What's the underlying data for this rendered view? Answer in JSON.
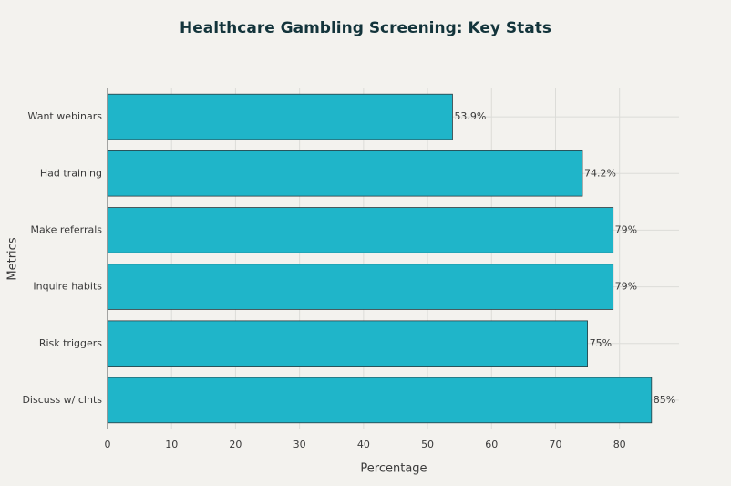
{
  "chart_data": {
    "type": "bar",
    "orientation": "horizontal",
    "title": "Healthcare Gambling Screening: Key Stats",
    "x_label": "Percentage",
    "y_label": "Metrics",
    "categories": [
      "Want webinars",
      "Had training",
      "Make referrals",
      "Inquire habits",
      "Risk triggers",
      "Discuss w/ clnts"
    ],
    "values": [
      53.9,
      74.2,
      79,
      79,
      75,
      85
    ],
    "value_labels": [
      "53.9%",
      "74.2%",
      "79%",
      "79%",
      "75%",
      "85%"
    ],
    "color": "#1fb5c9",
    "xlim": [
      0,
      89.3
    ],
    "xticks": [
      0,
      10,
      20,
      30,
      40,
      50,
      60,
      70,
      80
    ],
    "grid": true
  }
}
